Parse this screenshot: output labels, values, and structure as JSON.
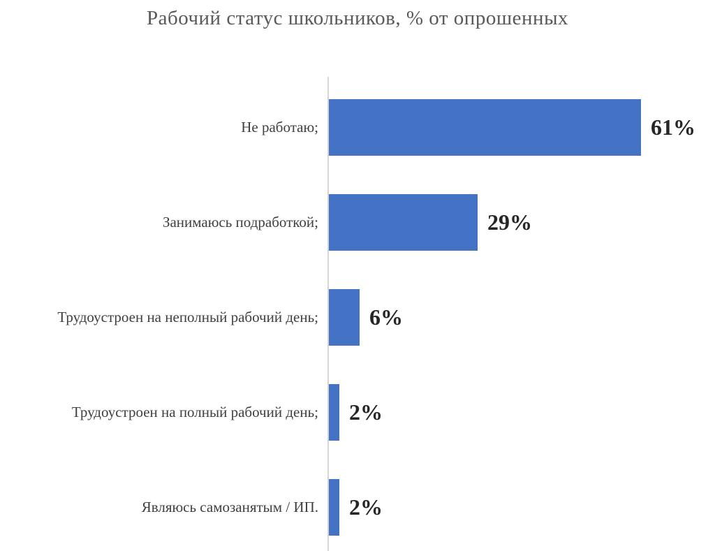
{
  "chart_data": {
    "type": "bar",
    "orientation": "horizontal",
    "title": "Рабочий статус школьников, % от опрошенных",
    "categories": [
      "Не работаю;",
      "Занимаюсь подработкой;",
      "Трудоустроен на неполный рабочий день;",
      "Трудоустроен на полный рабочий день;",
      "Являюсь самозанятым / ИП."
    ],
    "values": [
      61,
      29,
      6,
      2,
      2
    ],
    "value_labels": [
      "61%",
      "29%",
      "6%",
      "2%",
      "2%"
    ],
    "unit": "%",
    "xlim": [
      0,
      61
    ],
    "grid": false,
    "legend": false,
    "colors": {
      "bar": "#4472c4",
      "axis_line": "#d6d6d6",
      "title": "#595959",
      "category_label": "#3f3f3f",
      "value_label": "#262626"
    }
  },
  "layout_note": ""
}
